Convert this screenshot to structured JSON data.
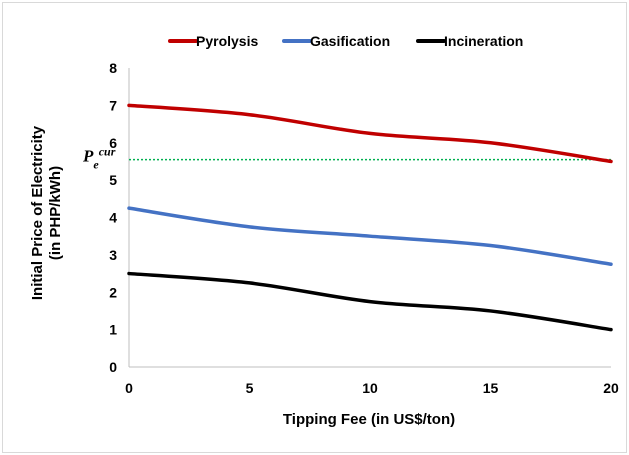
{
  "chart_data": {
    "type": "line",
    "xlabel": "Tipping Fee (in US$/ton)",
    "ylabel_line1": "Initial Price of Electricity",
    "ylabel_line2": "(in PHP/kWh)",
    "xlim": [
      0,
      20
    ],
    "ylim": [
      0,
      8
    ],
    "x_ticks": [
      0,
      5,
      10,
      15,
      20
    ],
    "y_ticks": [
      0,
      1,
      2,
      3,
      4,
      5,
      6,
      7,
      8
    ],
    "grid": false,
    "legend_position": "top",
    "series": [
      {
        "name": "Pyrolysis",
        "color": "#c00000",
        "x": [
          0,
          5,
          10,
          15,
          20
        ],
        "y": [
          7.0,
          6.75,
          6.25,
          6.0,
          5.5
        ]
      },
      {
        "name": "Gasification",
        "color": "#4472c4",
        "x": [
          0,
          5,
          10,
          15,
          20
        ],
        "y": [
          4.25,
          3.75,
          3.5,
          3.25,
          2.75
        ]
      },
      {
        "name": "Incineration",
        "color": "#000000",
        "x": [
          0,
          5,
          10,
          15,
          20
        ],
        "y": [
          2.5,
          2.25,
          1.75,
          1.5,
          1.0
        ]
      }
    ],
    "reference_line": {
      "y": 5.55,
      "color": "#00b050",
      "label_base": "P",
      "label_sub": "e",
      "label_sup": "cur"
    }
  }
}
